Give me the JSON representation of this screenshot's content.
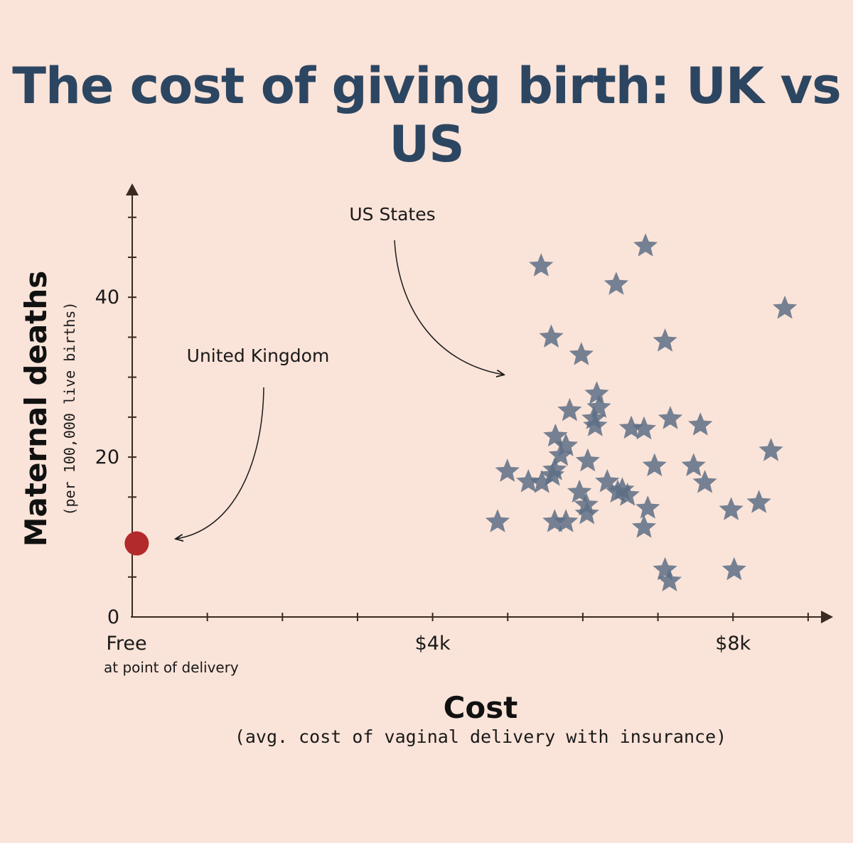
{
  "title": "The cost of giving birth: UK vs US",
  "chart_data": {
    "type": "scatter",
    "title": "The cost of giving birth: UK vs US",
    "xlabel": "Cost",
    "xlabel_sub": "(avg. cost of vaginal delivery with insurance)",
    "ylabel": "Maternal deaths",
    "ylabel_sub": "(per 100,000 live births)",
    "xlim": [
      0,
      9200
    ],
    "ylim": [
      0,
      53
    ],
    "x_ticks": [
      {
        "value": 0,
        "label": "Free",
        "sub": "at point of delivery"
      },
      {
        "value": 4000,
        "label": "$4k"
      },
      {
        "value": 8000,
        "label": "$8k"
      }
    ],
    "y_ticks": [
      {
        "value": 0,
        "label": "0"
      },
      {
        "value": 20,
        "label": "20"
      },
      {
        "value": 40,
        "label": "40"
      }
    ],
    "colors": {
      "uk": "#b22a2a",
      "us": "#5d6f86",
      "axis": "#3a2a22",
      "title": "#2c4662"
    },
    "annotations": {
      "uk": "United Kingdom",
      "us": "US States"
    },
    "series": [
      {
        "name": "United Kingdom",
        "marker": "circle",
        "points": [
          [
            60,
            9.2
          ]
        ]
      },
      {
        "name": "US States",
        "marker": "star",
        "points": [
          [
            6835,
            46.4
          ],
          [
            5445,
            43.9
          ],
          [
            6445,
            41.6
          ],
          [
            8690,
            38.6
          ],
          [
            5580,
            35.0
          ],
          [
            7095,
            34.5
          ],
          [
            5980,
            32.8
          ],
          [
            6185,
            27.9
          ],
          [
            6215,
            26.2
          ],
          [
            5825,
            25.8
          ],
          [
            6145,
            24.8
          ],
          [
            6165,
            23.9
          ],
          [
            7165,
            24.8
          ],
          [
            7565,
            24.0
          ],
          [
            6645,
            23.6
          ],
          [
            6815,
            23.5
          ],
          [
            5635,
            22.6
          ],
          [
            5775,
            21.4
          ],
          [
            5705,
            20.2
          ],
          [
            6065,
            19.5
          ],
          [
            5625,
            18.4
          ],
          [
            5595,
            17.7
          ],
          [
            4995,
            18.2
          ],
          [
            5275,
            16.9
          ],
          [
            5455,
            16.8
          ],
          [
            6325,
            16.9
          ],
          [
            6525,
            15.9
          ],
          [
            6595,
            15.2
          ],
          [
            6465,
            15.6
          ],
          [
            6955,
            18.9
          ],
          [
            7475,
            18.9
          ],
          [
            7625,
            16.8
          ],
          [
            8505,
            20.8
          ],
          [
            5955,
            15.6
          ],
          [
            6045,
            14.0
          ],
          [
            6055,
            12.9
          ],
          [
            6865,
            13.6
          ],
          [
            6815,
            11.2
          ],
          [
            5775,
            11.9
          ],
          [
            5625,
            11.9
          ],
          [
            4865,
            11.9
          ],
          [
            7975,
            13.4
          ],
          [
            8345,
            14.3
          ],
          [
            7095,
            5.9
          ],
          [
            7155,
            4.5
          ],
          [
            8015,
            5.9
          ]
        ]
      }
    ]
  }
}
